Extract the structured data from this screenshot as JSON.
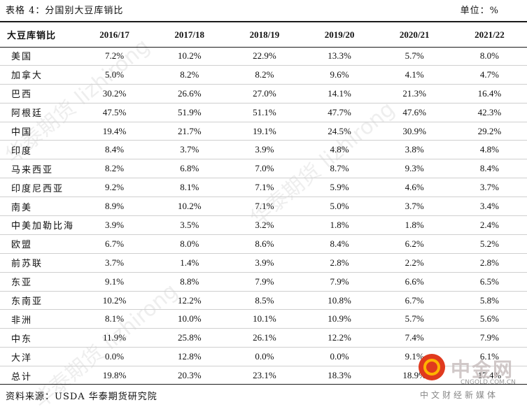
{
  "caption": "表格 4：分国别大豆库销比",
  "unit": "单位：%",
  "header": {
    "row_label": "大豆库销比",
    "columns": [
      "2016/17",
      "2017/18",
      "2018/19",
      "2019/20",
      "2020/21",
      "2021/22"
    ]
  },
  "rows": [
    {
      "name": "美国",
      "values": [
        "7.2%",
        "10.2%",
        "22.9%",
        "13.3%",
        "5.7%",
        "8.0%"
      ]
    },
    {
      "name": "加拿大",
      "values": [
        "5.0%",
        "8.2%",
        "8.2%",
        "9.6%",
        "4.1%",
        "4.7%"
      ]
    },
    {
      "name": "巴西",
      "values": [
        "30.2%",
        "26.6%",
        "27.0%",
        "14.1%",
        "21.3%",
        "16.4%"
      ]
    },
    {
      "name": "阿根廷",
      "values": [
        "47.5%",
        "51.9%",
        "51.1%",
        "47.7%",
        "47.6%",
        "42.3%"
      ]
    },
    {
      "name": "中国",
      "values": [
        "19.4%",
        "21.7%",
        "19.1%",
        "24.5%",
        "30.9%",
        "29.2%"
      ]
    },
    {
      "name": "印度",
      "values": [
        "8.4%",
        "3.7%",
        "3.9%",
        "4.8%",
        "3.8%",
        "4.8%"
      ]
    },
    {
      "name": "马来西亚",
      "values": [
        "8.2%",
        "6.8%",
        "7.0%",
        "8.7%",
        "9.3%",
        "8.4%"
      ]
    },
    {
      "name": "印度尼西亚",
      "values": [
        "9.2%",
        "8.1%",
        "7.1%",
        "5.9%",
        "4.6%",
        "3.7%"
      ]
    },
    {
      "name": "南美",
      "values": [
        "8.9%",
        "10.2%",
        "7.1%",
        "5.0%",
        "3.7%",
        "3.4%"
      ]
    },
    {
      "name": "中美加勒比海",
      "values": [
        "3.9%",
        "3.5%",
        "3.2%",
        "1.8%",
        "1.8%",
        "2.4%"
      ]
    },
    {
      "name": "欧盟",
      "values": [
        "6.7%",
        "8.0%",
        "8.6%",
        "8.4%",
        "6.2%",
        "5.2%"
      ]
    },
    {
      "name": "前苏联",
      "values": [
        "3.7%",
        "1.4%",
        "3.9%",
        "2.8%",
        "2.2%",
        "2.8%"
      ]
    },
    {
      "name": "东亚",
      "values": [
        "9.1%",
        "8.8%",
        "7.9%",
        "7.9%",
        "6.6%",
        "6.5%"
      ]
    },
    {
      "name": "东南亚",
      "values": [
        "10.2%",
        "12.2%",
        "8.5%",
        "10.8%",
        "6.7%",
        "5.8%"
      ]
    },
    {
      "name": "非洲",
      "values": [
        "8.1%",
        "10.0%",
        "10.1%",
        "10.9%",
        "5.7%",
        "5.6%"
      ]
    },
    {
      "name": "中东",
      "values": [
        "11.9%",
        "25.8%",
        "26.1%",
        "12.2%",
        "7.4%",
        "7.9%"
      ]
    },
    {
      "name": "大洋",
      "values": [
        "0.0%",
        "12.8%",
        "0.0%",
        "0.0%",
        "9.1%",
        "6.1%"
      ]
    },
    {
      "name": "总计",
      "values": [
        "19.8%",
        "20.3%",
        "23.1%",
        "18.3%",
        "18.9%",
        "17.4%"
      ]
    }
  ],
  "source": "资料来源：USDA 华泰期货研究院",
  "watermarks": [
    "华泰期货 lizhirong",
    "华泰期货 lizhirong",
    "华泰期货 lizhirong"
  ],
  "logo": {
    "name": "中金网",
    "domain": "CNGOLD.COM.CN",
    "tagline": "中文财经新媒体",
    "icon": "cngold-logo-icon",
    "colors": {
      "circle": "#e03a1e",
      "ring": "#ffb400"
    }
  }
}
